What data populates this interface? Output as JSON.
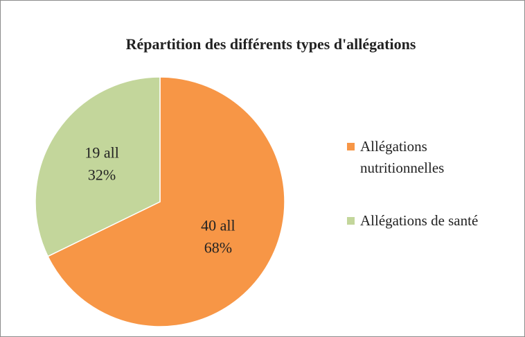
{
  "chart_data": {
    "type": "pie",
    "title": "Répartition des différents types d'allégations",
    "categories": [
      "Allégations nutritionnelles",
      "Allégations de santé"
    ],
    "values": [
      40,
      19
    ],
    "value_labels": [
      "40 all",
      "19 all"
    ],
    "percents": [
      68,
      32
    ],
    "percent_labels": [
      "68%",
      "32%"
    ],
    "colors": [
      "#f79646",
      "#c3d69b"
    ],
    "legend": "right"
  }
}
